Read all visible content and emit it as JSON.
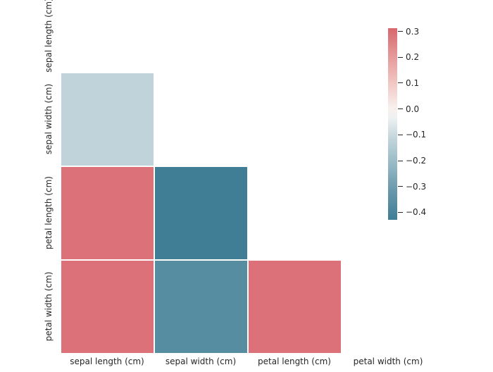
{
  "figure": {
    "background": "#ffffff",
    "text_color": "#262626"
  },
  "chart_data": {
    "type": "heatmap",
    "title": "",
    "xlabel": "",
    "ylabel": "",
    "x_categories": [
      "sepal length (cm)",
      "sepal width (cm)",
      "petal length (cm)",
      "petal width (cm)"
    ],
    "y_categories": [
      "sepal length (cm)",
      "sepal width (cm)",
      "petal length (cm)",
      "petal width (cm)"
    ],
    "mask": "upper-triangle-and-diagonal-hidden",
    "grid": "off",
    "cell_gap_color": "#ffffff",
    "cells": [
      {
        "row": 1,
        "col": 0,
        "value": -0.12,
        "color": "#c1d3da"
      },
      {
        "row": 2,
        "col": 0,
        "value": 0.3,
        "color": "#dc7179"
      },
      {
        "row": 2,
        "col": 1,
        "value": -0.43,
        "color": "#3f7e95"
      },
      {
        "row": 3,
        "col": 0,
        "value": 0.3,
        "color": "#dc7179"
      },
      {
        "row": 3,
        "col": 1,
        "value": -0.37,
        "color": "#568da0"
      },
      {
        "row": 3,
        "col": 2,
        "value": 0.3,
        "color": "#dc7179"
      }
    ],
    "colorbar": {
      "position": "right",
      "vmax": 0.3,
      "vmin": -0.43,
      "ticks": [
        "0.3",
        "0.2",
        "0.1",
        "0.0",
        "−0.1",
        "−0.2",
        "−0.3",
        "−0.4"
      ],
      "top_color": "#d8696f",
      "center_color": "#f7f1ee",
      "bottom_color": "#3f7e95",
      "gradient": [
        {
          "at": 0.0,
          "color": "#d8696f"
        },
        {
          "at": 0.02,
          "color": "#d96e74"
        },
        {
          "at": 0.15,
          "color": "#e59a9b"
        },
        {
          "at": 0.3,
          "color": "#f2cbc7"
        },
        {
          "at": 0.42,
          "color": "#f8f1ee"
        },
        {
          "at": 0.47,
          "color": "#edf1f1"
        },
        {
          "at": 0.56,
          "color": "#c8d8de"
        },
        {
          "at": 0.7,
          "color": "#9abbc6"
        },
        {
          "at": 0.85,
          "color": "#6897ab"
        },
        {
          "at": 1.0,
          "color": "#3f7e95"
        }
      ]
    }
  }
}
